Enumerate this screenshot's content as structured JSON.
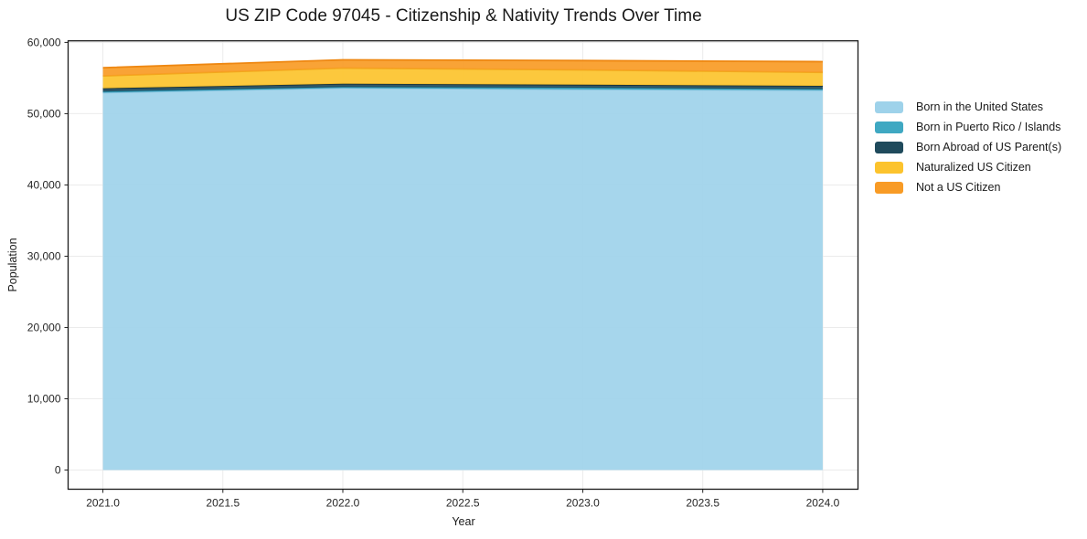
{
  "chart_data": {
    "type": "area",
    "stacked": true,
    "title": "US ZIP Code 97045 - Citizenship & Nativity Trends Over Time",
    "xlabel": "Year",
    "ylabel": "Population",
    "x": [
      2021,
      2022,
      2023,
      2024
    ],
    "series": [
      {
        "name": "Born in the United States",
        "color": "#9ed2ea",
        "edge": "#85c2de",
        "values": [
          52950,
          53600,
          53400,
          53300
        ]
      },
      {
        "name": "Born in Puerto Rico / Islands",
        "color": "#3fa8c2",
        "edge": "#2d93ae",
        "values": [
          150,
          150,
          250,
          150
        ]
      },
      {
        "name": "Born Abroad of US Parent(s)",
        "color": "#1f4a5c",
        "edge": "#15323f",
        "values": [
          450,
          450,
          400,
          450
        ]
      },
      {
        "name": "Naturalized US Citizen",
        "color": "#fcc32d",
        "edge": "#f2a91c",
        "values": [
          1750,
          2200,
          2100,
          1900
        ]
      },
      {
        "name": "Not a US Citizen",
        "color": "#f89b25",
        "edge": "#ee8711",
        "values": [
          1150,
          1150,
          1300,
          1500
        ]
      }
    ],
    "totals": [
      56450,
      57550,
      57450,
      57300
    ],
    "xlim": [
      2020.855,
      2024.147
    ],
    "ylim": [
      -2690,
      60220
    ],
    "x_ticks": [
      {
        "v": 2021.0,
        "label": "2021.0"
      },
      {
        "v": 2021.5,
        "label": "2021.5"
      },
      {
        "v": 2022.0,
        "label": "2022.0"
      },
      {
        "v": 2022.5,
        "label": "2022.5"
      },
      {
        "v": 2023.0,
        "label": "2023.0"
      },
      {
        "v": 2023.5,
        "label": "2023.5"
      },
      {
        "v": 2024.0,
        "label": "2024.0"
      }
    ],
    "y_ticks": [
      {
        "v": 0,
        "label": "0"
      },
      {
        "v": 10000,
        "label": "10,000"
      },
      {
        "v": 20000,
        "label": "20,000"
      },
      {
        "v": 30000,
        "label": "30,000"
      },
      {
        "v": 40000,
        "label": "40,000"
      },
      {
        "v": 50000,
        "label": "50,000"
      },
      {
        "v": 60000,
        "label": "60,000"
      }
    ],
    "grid": true,
    "grid_color": "#ebebeb",
    "spine_color": "#1a1a1a",
    "tick_color": "#262626",
    "legend_position": "right-outside"
  }
}
